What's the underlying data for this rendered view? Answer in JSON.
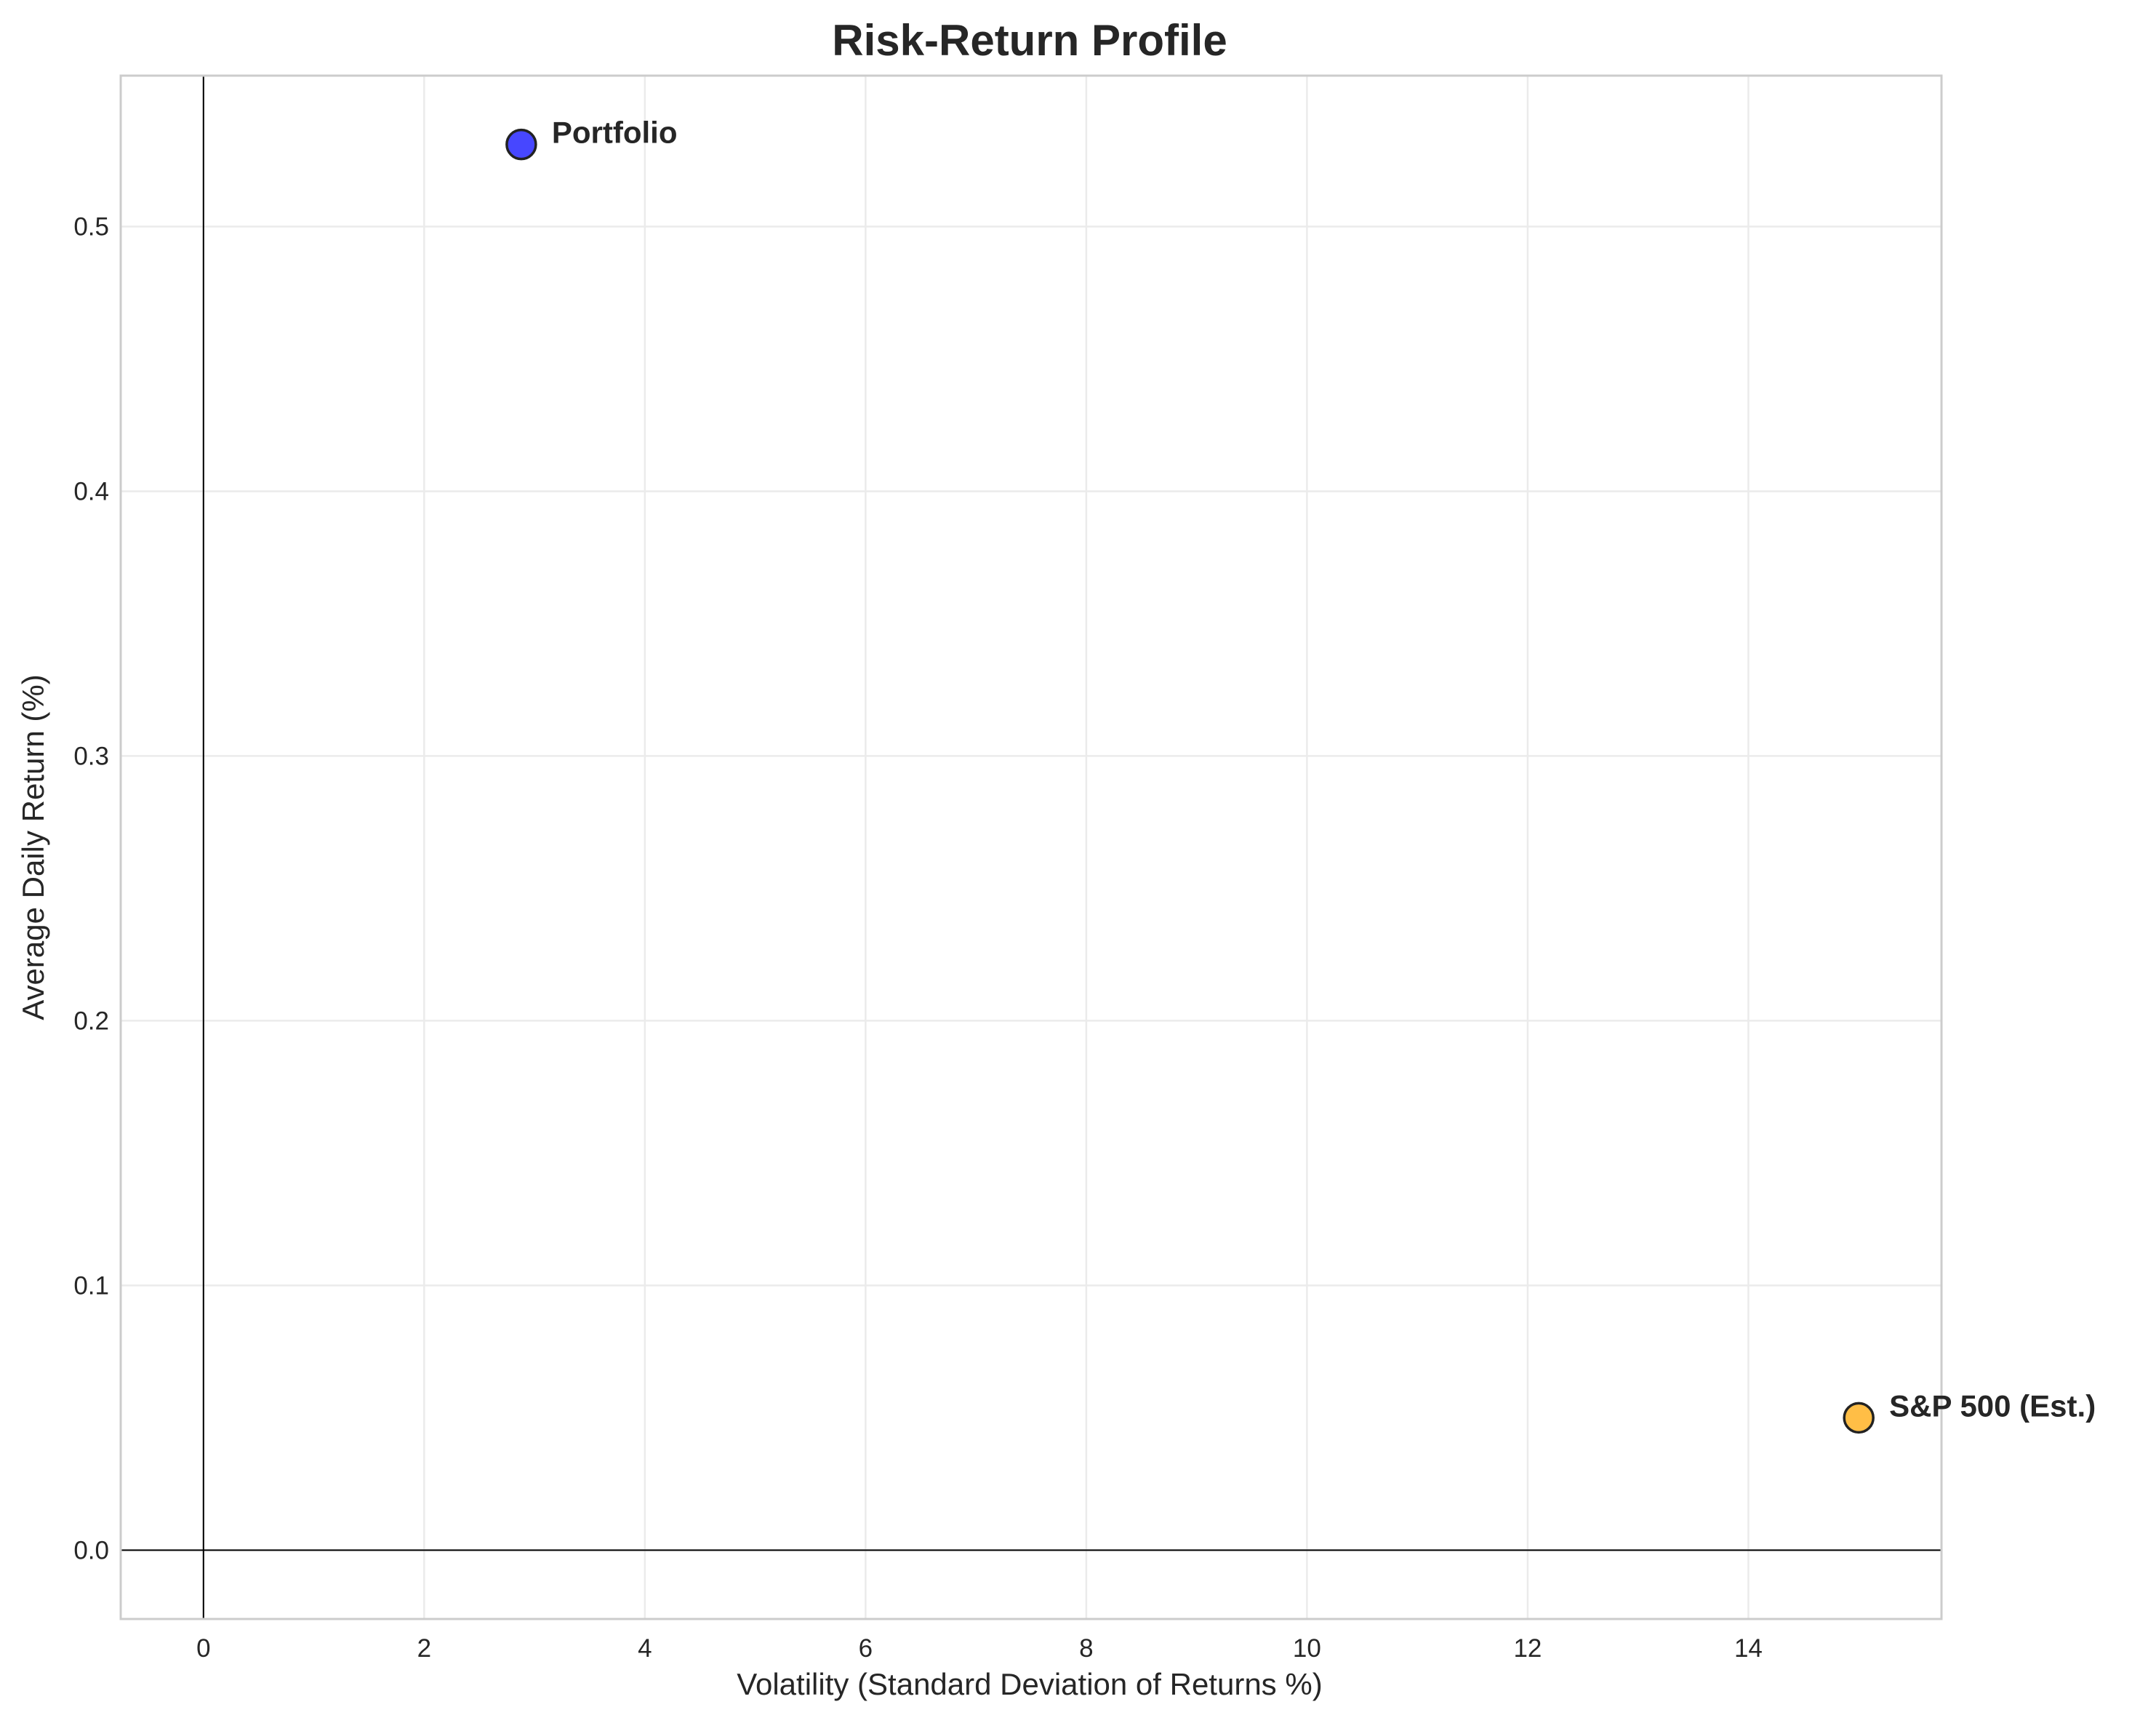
{
  "chart_data": {
    "type": "scatter",
    "title": "Risk-Return Profile",
    "xlabel": "Volatility (Standard Deviation of Returns %)",
    "ylabel": "Average Daily Return (%)",
    "xlim": [
      -0.75,
      15.75
    ],
    "ylim": [
      -0.026,
      0.557
    ],
    "xticks": [
      "0",
      "2",
      "4",
      "6",
      "8",
      "10",
      "12",
      "14"
    ],
    "yticks": [
      "0.0",
      "0.1",
      "0.2",
      "0.3",
      "0.4",
      "0.5"
    ],
    "grid": true,
    "reference_lines": {
      "x": 0,
      "y": 0
    },
    "points": [
      {
        "label": "Portfolio",
        "x": 2.88,
        "y": 0.531,
        "color": "#3333ff"
      },
      {
        "label": "S&P 500 (Est.)",
        "x": 15.0,
        "y": 0.05,
        "color": "#ffb732"
      }
    ]
  }
}
